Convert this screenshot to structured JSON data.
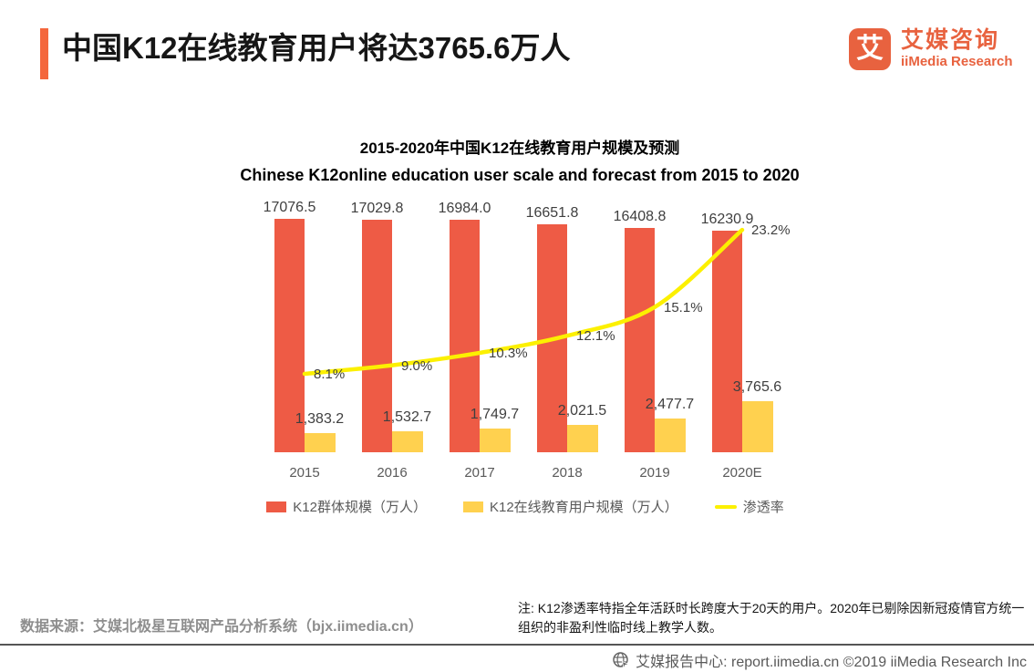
{
  "header": {
    "title": "中国K12在线教育用户将达3765.6万人",
    "logo": {
      "glyph": "艾",
      "brand_cn": "艾媒咨询",
      "brand_en": "iiMedia Research"
    }
  },
  "chart": {
    "title_cn": "2015-2020年中国K12在线教育用户规模及预测",
    "title_en": "Chinese K12online education user scale and forecast from 2015 to 2020"
  },
  "chart_data": {
    "type": "bar",
    "subtype": "grouped-bar-with-line",
    "title": "2015-2020年中国K12在线教育用户规模及预测",
    "subtitle": "Chinese K12online education user scale and forecast from 2015 to 2020",
    "categories": [
      "2015",
      "2016",
      "2017",
      "2018",
      "2019",
      "2020E"
    ],
    "series": [
      {
        "name": "K12群体规模（万人）",
        "type": "bar",
        "color": "#EE5B45",
        "values": [
          17076.5,
          17029.8,
          16984.0,
          16651.8,
          16408.8,
          16230.9
        ],
        "labels": [
          "17076.5",
          "17029.8",
          "16984.0",
          "16651.8",
          "16408.8",
          "16230.9"
        ]
      },
      {
        "name": "K12在线教育用户规模（万人）",
        "type": "bar",
        "color": "#FFD14F",
        "values": [
          1383.2,
          1532.7,
          1749.7,
          2021.5,
          2477.7,
          3765.6
        ],
        "labels": [
          "1,383.2",
          "1,532.7",
          "1,749.7",
          "2,021.5",
          "2,477.7",
          "3,765.6"
        ]
      },
      {
        "name": "渗透率",
        "type": "line",
        "color": "#FCF000",
        "values": [
          8.1,
          9.0,
          10.3,
          12.1,
          15.1,
          23.2
        ],
        "labels": [
          "8.1%",
          "9.0%",
          "10.3%",
          "12.1%",
          "15.1%",
          "23.2%"
        ]
      }
    ],
    "legend_position": "bottom",
    "grid": false,
    "axes_visible": false
  },
  "footnotes": {
    "source": "数据来源：艾媒北极星互联网产品分析系统（bjx.iimedia.cn）",
    "note": "注: K12渗透率特指全年活跃时长跨度大于20天的用户。2020年已剔除因新冠疫情官方统一组织的非盈利性临时线上教学人数。"
  },
  "footer": {
    "text": "艾媒报告中心: report.iimedia.cn  ©2019  iiMedia Research Inc"
  },
  "colors": {
    "brand_orange": "#E8623F",
    "accent_bar": "#F4673D",
    "bar_red": "#EE5B45",
    "bar_yellow": "#FFD14F",
    "line_yellow": "#FCF000"
  }
}
